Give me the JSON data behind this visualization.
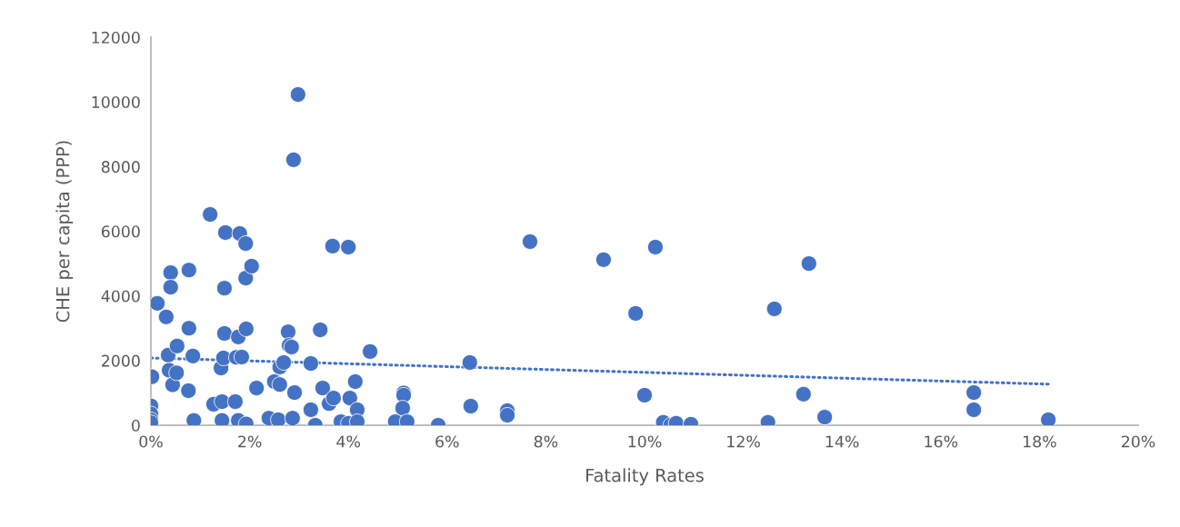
{
  "chart_data": {
    "type": "scatter",
    "xlabel": "Fatality Rates",
    "ylabel": "CHE per capita (PPP)",
    "xlim": [
      0,
      20
    ],
    "ylim": [
      0,
      12000
    ],
    "xticks": [
      {
        "value": 0,
        "label": "0%"
      },
      {
        "value": 2,
        "label": "2%"
      },
      {
        "value": 4,
        "label": "4%"
      },
      {
        "value": 6,
        "label": "6%"
      },
      {
        "value": 8,
        "label": "8%"
      },
      {
        "value": 10,
        "label": "10%"
      },
      {
        "value": 12,
        "label": "12%"
      },
      {
        "value": 14,
        "label": "14%"
      },
      {
        "value": 16,
        "label": "16%"
      },
      {
        "value": 18,
        "label": "18%"
      },
      {
        "value": 20,
        "label": "20%"
      }
    ],
    "yticks": [
      0,
      2000,
      4000,
      6000,
      8000,
      10000,
      12000
    ],
    "grid": false,
    "legend": false,
    "marker": "circle",
    "series": [
      {
        "color": "#4472c4",
        "x": [
          0,
          0,
          0,
          0,
          0.02,
          0.13,
          0.31,
          0.4,
          0.4,
          0.35,
          0.37,
          0.44,
          0.52,
          0.53,
          0.77,
          0.77,
          0.76,
          0.85,
          0.87,
          1.2,
          1.27,
          1.44,
          1.42,
          1.47,
          1.49,
          1.49,
          1.51,
          1.44,
          1.71,
          1.73,
          1.77,
          1.8,
          1.84,
          1.92,
          1.92,
          1.93,
          2.04,
          1.77,
          1.93,
          2.14,
          2.39,
          2.5,
          2.58,
          2.61,
          2.61,
          2.69,
          2.78,
          2.8,
          2.85,
          2.91,
          2.87,
          2.98,
          2.89,
          3.24,
          3.24,
          3.33,
          3.43,
          3.48,
          3.61,
          3.7,
          3.68,
          3.85,
          4.0,
          4.0,
          4.03,
          4.14,
          4.18,
          4.18,
          4.44,
          4.95,
          5.12,
          5.12,
          5.1,
          5.19,
          5.82,
          6.46,
          6.48,
          7.22,
          7.22,
          7.68,
          9.17,
          9.82,
          10.0,
          10.38,
          10.53,
          10.64,
          10.94,
          10.22,
          12.5,
          12.63,
          13.22,
          13.33,
          13.65,
          16.67,
          16.67,
          18.18
        ],
        "values": [
          600,
          350,
          170,
          80,
          1500,
          3770,
          3350,
          4720,
          4270,
          2170,
          1700,
          1250,
          1620,
          2450,
          4800,
          3000,
          1070,
          2140,
          150,
          6520,
          650,
          730,
          1770,
          2080,
          2840,
          4240,
          5960,
          150,
          730,
          2100,
          2730,
          5930,
          2110,
          5620,
          4550,
          2980,
          4920,
          150,
          40,
          1150,
          220,
          1350,
          170,
          1260,
          1800,
          1940,
          2890,
          2470,
          2420,
          1010,
          220,
          10230,
          8210,
          1910,
          480,
          0,
          2950,
          1150,
          670,
          840,
          5540,
          110,
          60,
          5510,
          840,
          1350,
          480,
          110,
          2280,
          110,
          1000,
          930,
          530,
          110,
          0,
          1940,
          590,
          450,
          310,
          5680,
          5120,
          3460,
          930,
          90,
          0,
          60,
          30,
          5510,
          90,
          3600,
          960,
          5000,
          250,
          1010,
          480,
          170
        ]
      },
      {
        "type": "line",
        "color": "#4472c4",
        "line_style": "dotted",
        "marker": "none",
        "x": [
          0,
          18.18
        ],
        "values": [
          2080,
          1270
        ]
      }
    ]
  }
}
